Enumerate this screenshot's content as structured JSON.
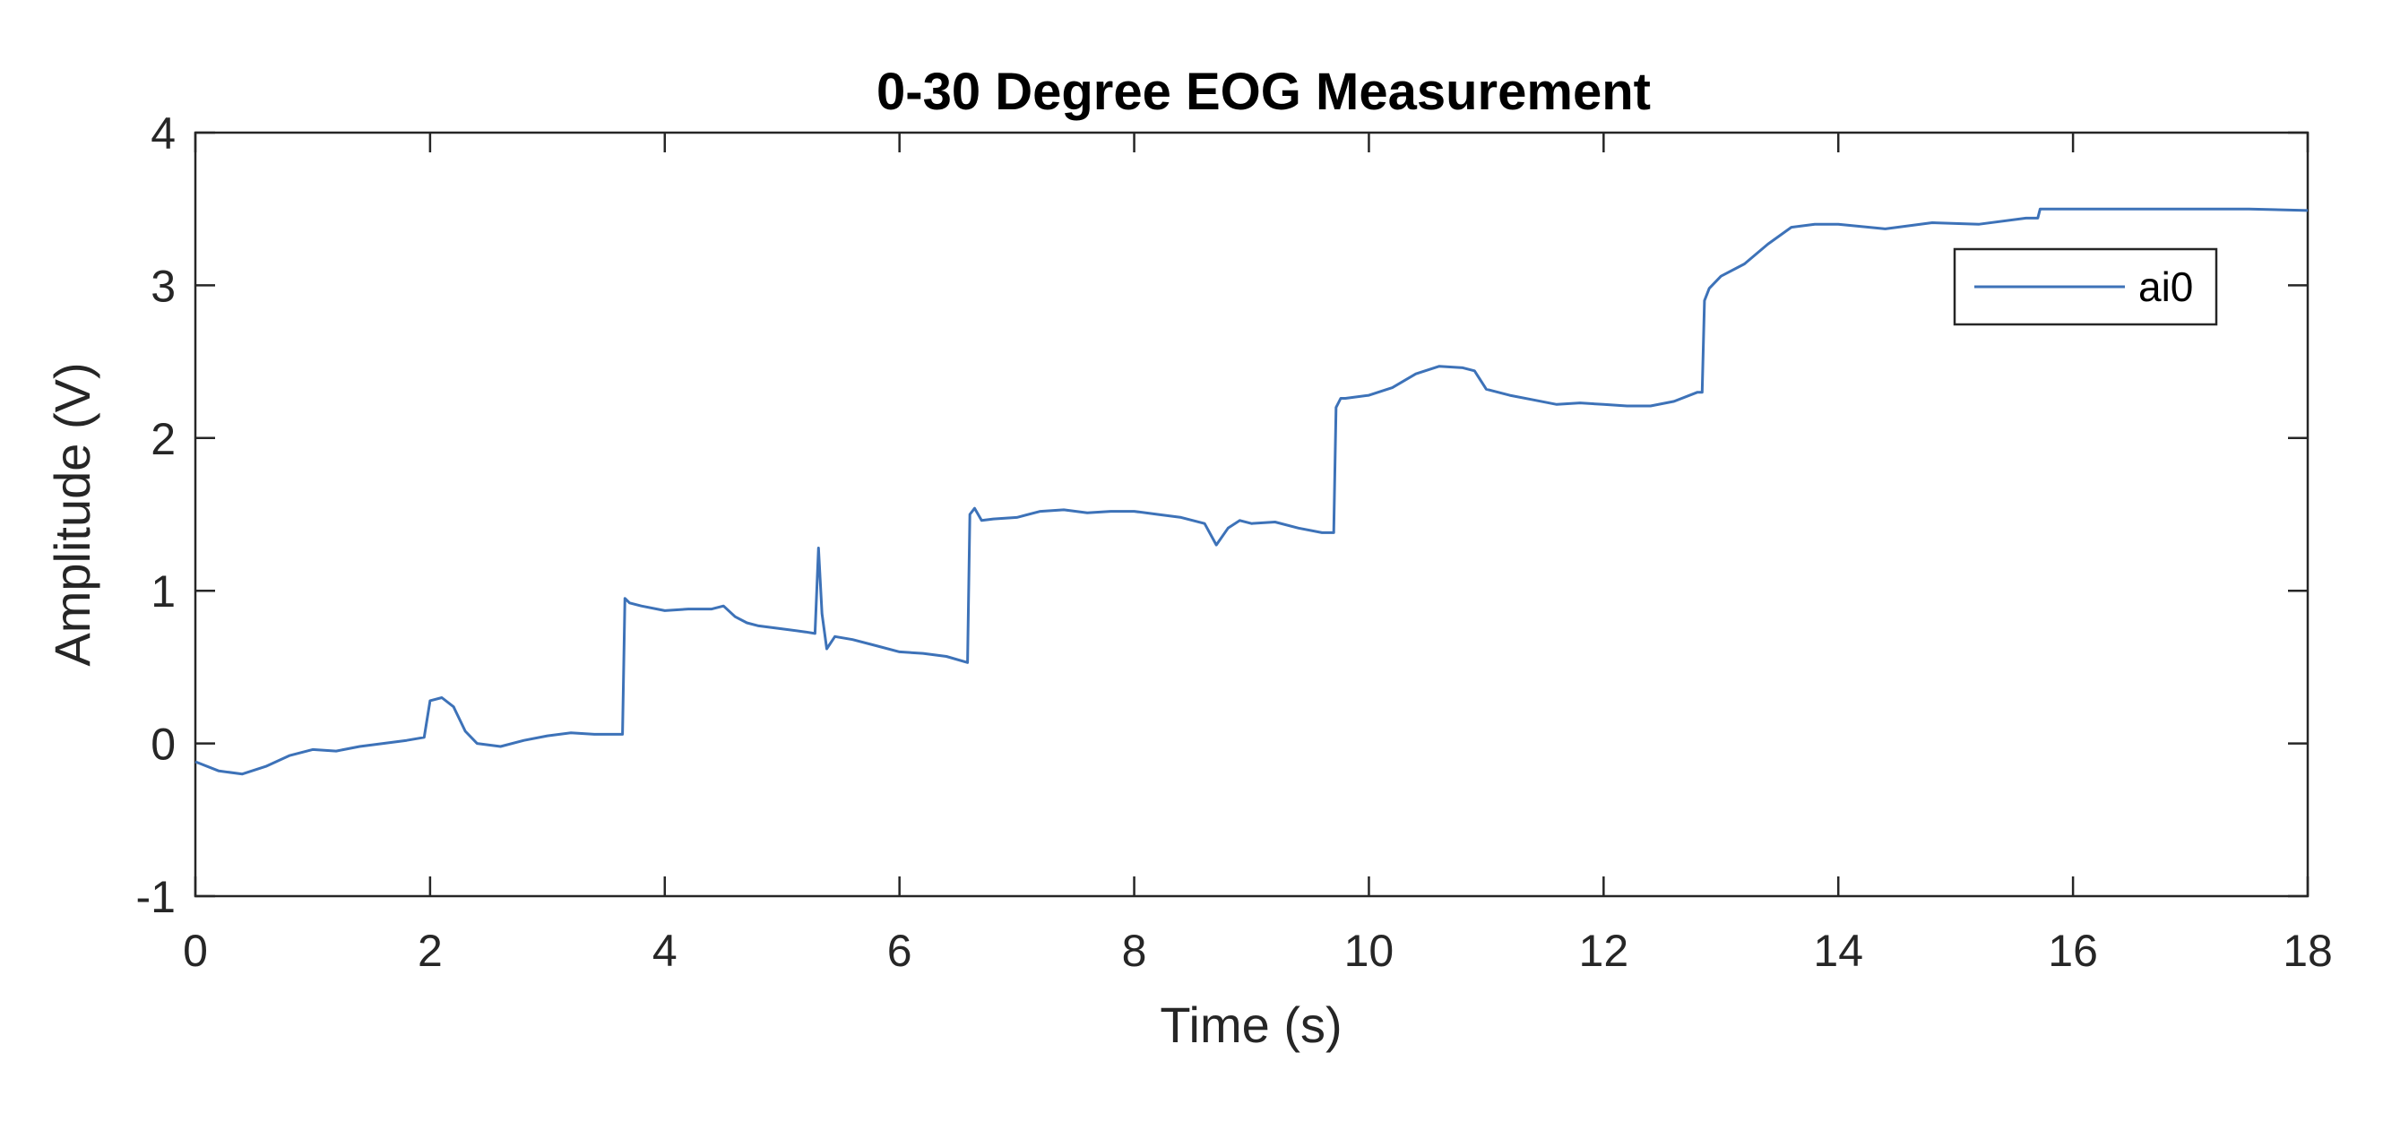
{
  "chart_data": {
    "type": "line",
    "title": "0-30 Degree EOG Measurement",
    "xlabel": "Time (s)",
    "ylabel": "Amplitude (V)",
    "xlim": [
      0,
      18
    ],
    "ylim": [
      -1,
      4
    ],
    "xticks": [
      0,
      2,
      4,
      6,
      8,
      10,
      12,
      14,
      16,
      18
    ],
    "yticks": [
      -1,
      0,
      1,
      2,
      3,
      4
    ],
    "grid": false,
    "legend_position": "top-right",
    "series": [
      {
        "name": "ai0",
        "color": "#3d72b8",
        "x": [
          0,
          0.2,
          0.4,
          0.6,
          0.8,
          1.0,
          1.2,
          1.4,
          1.6,
          1.8,
          1.95,
          2.0,
          2.1,
          2.2,
          2.3,
          2.4,
          2.6,
          2.8,
          3.0,
          3.2,
          3.4,
          3.6,
          3.64,
          3.66,
          3.7,
          3.8,
          4.0,
          4.2,
          4.4,
          4.5,
          4.6,
          4.7,
          4.8,
          5.0,
          5.2,
          5.28,
          5.31,
          5.34,
          5.38,
          5.45,
          5.6,
          5.8,
          6.0,
          6.2,
          6.4,
          6.58,
          6.6,
          6.64,
          6.7,
          6.8,
          7.0,
          7.2,
          7.4,
          7.6,
          7.8,
          8.0,
          8.2,
          8.4,
          8.6,
          8.7,
          8.8,
          8.9,
          9.0,
          9.2,
          9.4,
          9.6,
          9.7,
          9.72,
          9.76,
          9.8,
          10.0,
          10.2,
          10.4,
          10.6,
          10.8,
          10.9,
          11.0,
          11.2,
          11.4,
          11.6,
          11.8,
          12.0,
          12.2,
          12.4,
          12.6,
          12.8,
          12.84,
          12.86,
          12.9,
          13.0,
          13.2,
          13.4,
          13.6,
          13.8,
          14.0,
          14.4,
          14.8,
          15.2,
          15.6,
          15.7,
          15.72,
          16.0,
          16.5,
          17.0,
          17.5,
          18.0
        ],
        "values": [
          -0.12,
          -0.18,
          -0.2,
          -0.15,
          -0.08,
          -0.04,
          -0.05,
          -0.02,
          0.0,
          0.02,
          0.04,
          0.28,
          0.3,
          0.24,
          0.08,
          0.0,
          -0.02,
          0.02,
          0.05,
          0.07,
          0.06,
          0.06,
          0.06,
          0.95,
          0.92,
          0.9,
          0.87,
          0.88,
          0.88,
          0.9,
          0.83,
          0.79,
          0.77,
          0.75,
          0.73,
          0.72,
          1.28,
          0.85,
          0.62,
          0.7,
          0.68,
          0.64,
          0.6,
          0.59,
          0.57,
          0.53,
          1.5,
          1.54,
          1.46,
          1.47,
          1.48,
          1.52,
          1.53,
          1.51,
          1.52,
          1.52,
          1.5,
          1.48,
          1.44,
          1.3,
          1.41,
          1.46,
          1.44,
          1.45,
          1.41,
          1.38,
          1.38,
          2.2,
          2.26,
          2.26,
          2.28,
          2.33,
          2.42,
          2.47,
          2.46,
          2.44,
          2.32,
          2.28,
          2.25,
          2.22,
          2.23,
          2.22,
          2.21,
          2.21,
          2.24,
          2.3,
          2.3,
          2.9,
          2.98,
          3.06,
          3.14,
          3.27,
          3.38,
          3.4,
          3.4,
          3.37,
          3.41,
          3.4,
          3.44,
          3.44,
          3.5,
          3.5,
          3.5,
          3.5,
          3.5,
          3.49
        ]
      }
    ]
  }
}
